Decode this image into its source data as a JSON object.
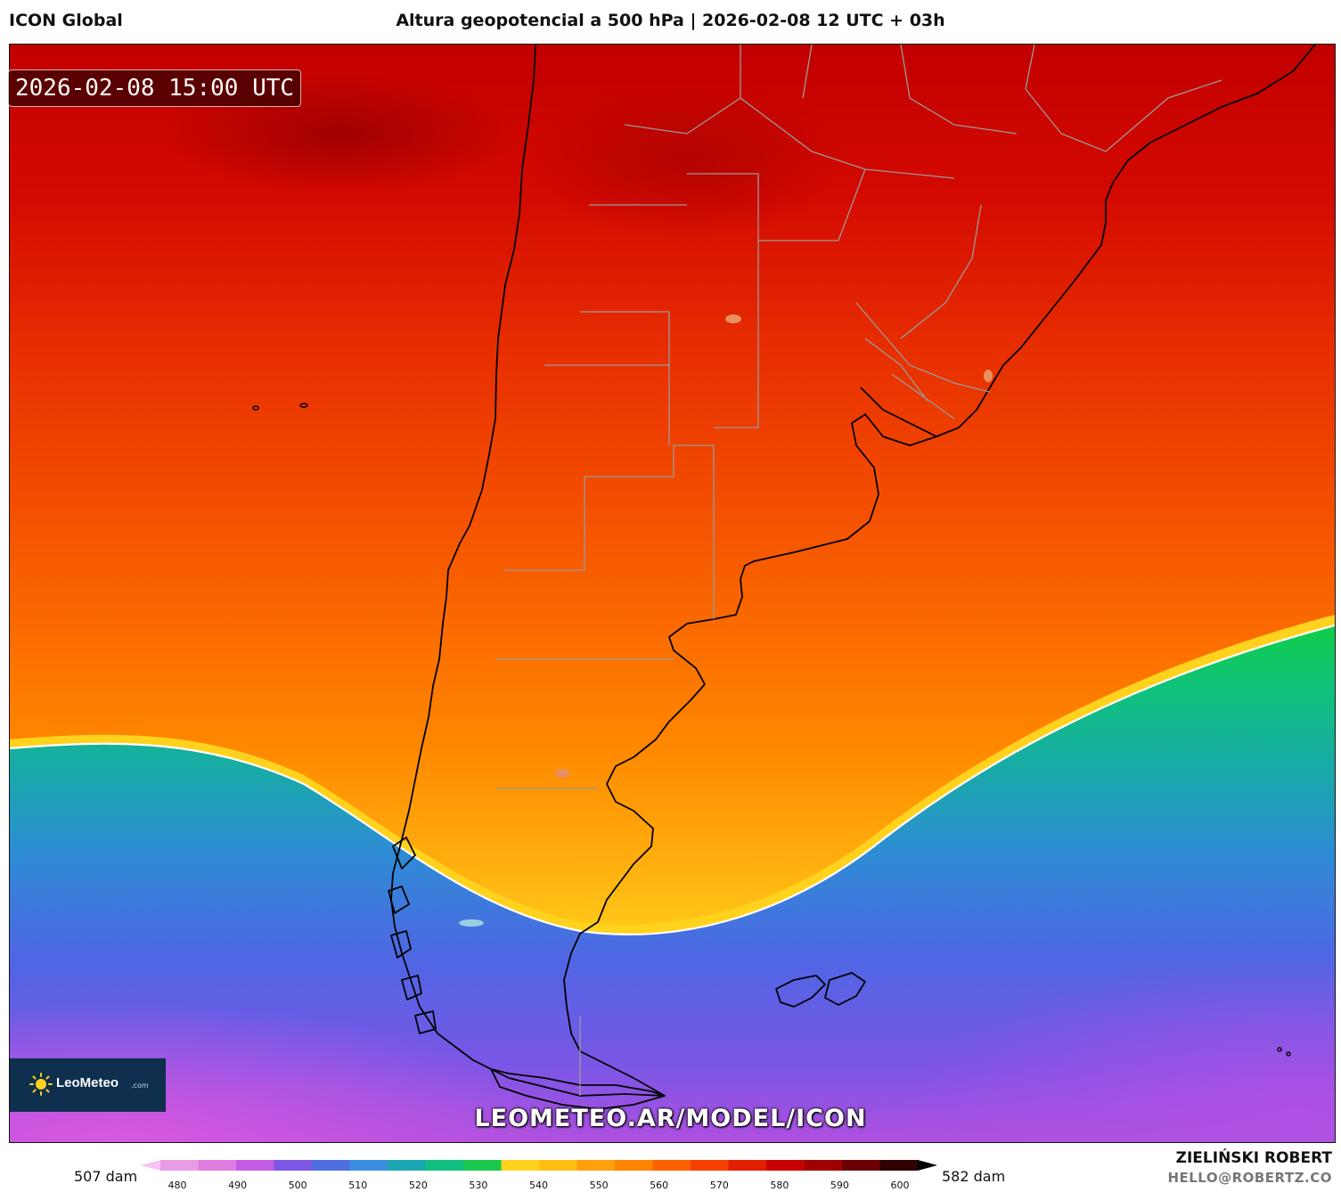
{
  "header": {
    "model_name": "ICON Global",
    "title": "Altura geopotencial a 500 hPa | 2026-02-08 12 UTC + 03h"
  },
  "map": {
    "valid_time": "2026-02-08 15:00 UTC",
    "watermark_url": "LEOMETEO.AR/MODEL/ICON",
    "field": "Altura geopotencial 500 hPa",
    "region": "Southern South America (Argentina, Chile, Uruguay, southern Brazil, Falkland Islands)",
    "highlight_contour": "552 dam (white line)"
  },
  "logo": {
    "brand_bold": "LeoMeteo",
    "brand_domain": ".com",
    "icon": "sun-icon"
  },
  "colorbar": {
    "min_label": "507 dam",
    "max_label": "582 dam",
    "ticks": [
      "480",
      "490",
      "500",
      "510",
      "520",
      "530",
      "540",
      "550",
      "560",
      "570",
      "580",
      "590",
      "600"
    ],
    "colors": [
      "#f6c3f3",
      "#e99ce6",
      "#df7ee0",
      "#c25ce0",
      "#7d57e5",
      "#4f6ee0",
      "#3b8de0",
      "#1aa6b2",
      "#11c080",
      "#18c94e",
      "#ffd21e",
      "#ffbe14",
      "#ffa00c",
      "#ff8400",
      "#ff6100",
      "#f54000",
      "#e21f00",
      "#c90000",
      "#a10000",
      "#6a0000",
      "#300000",
      "#000000"
    ]
  },
  "credits": {
    "author": "ZIELIŃSKI ROBERT",
    "email": "HELLO@ROBERTZ.CO"
  }
}
